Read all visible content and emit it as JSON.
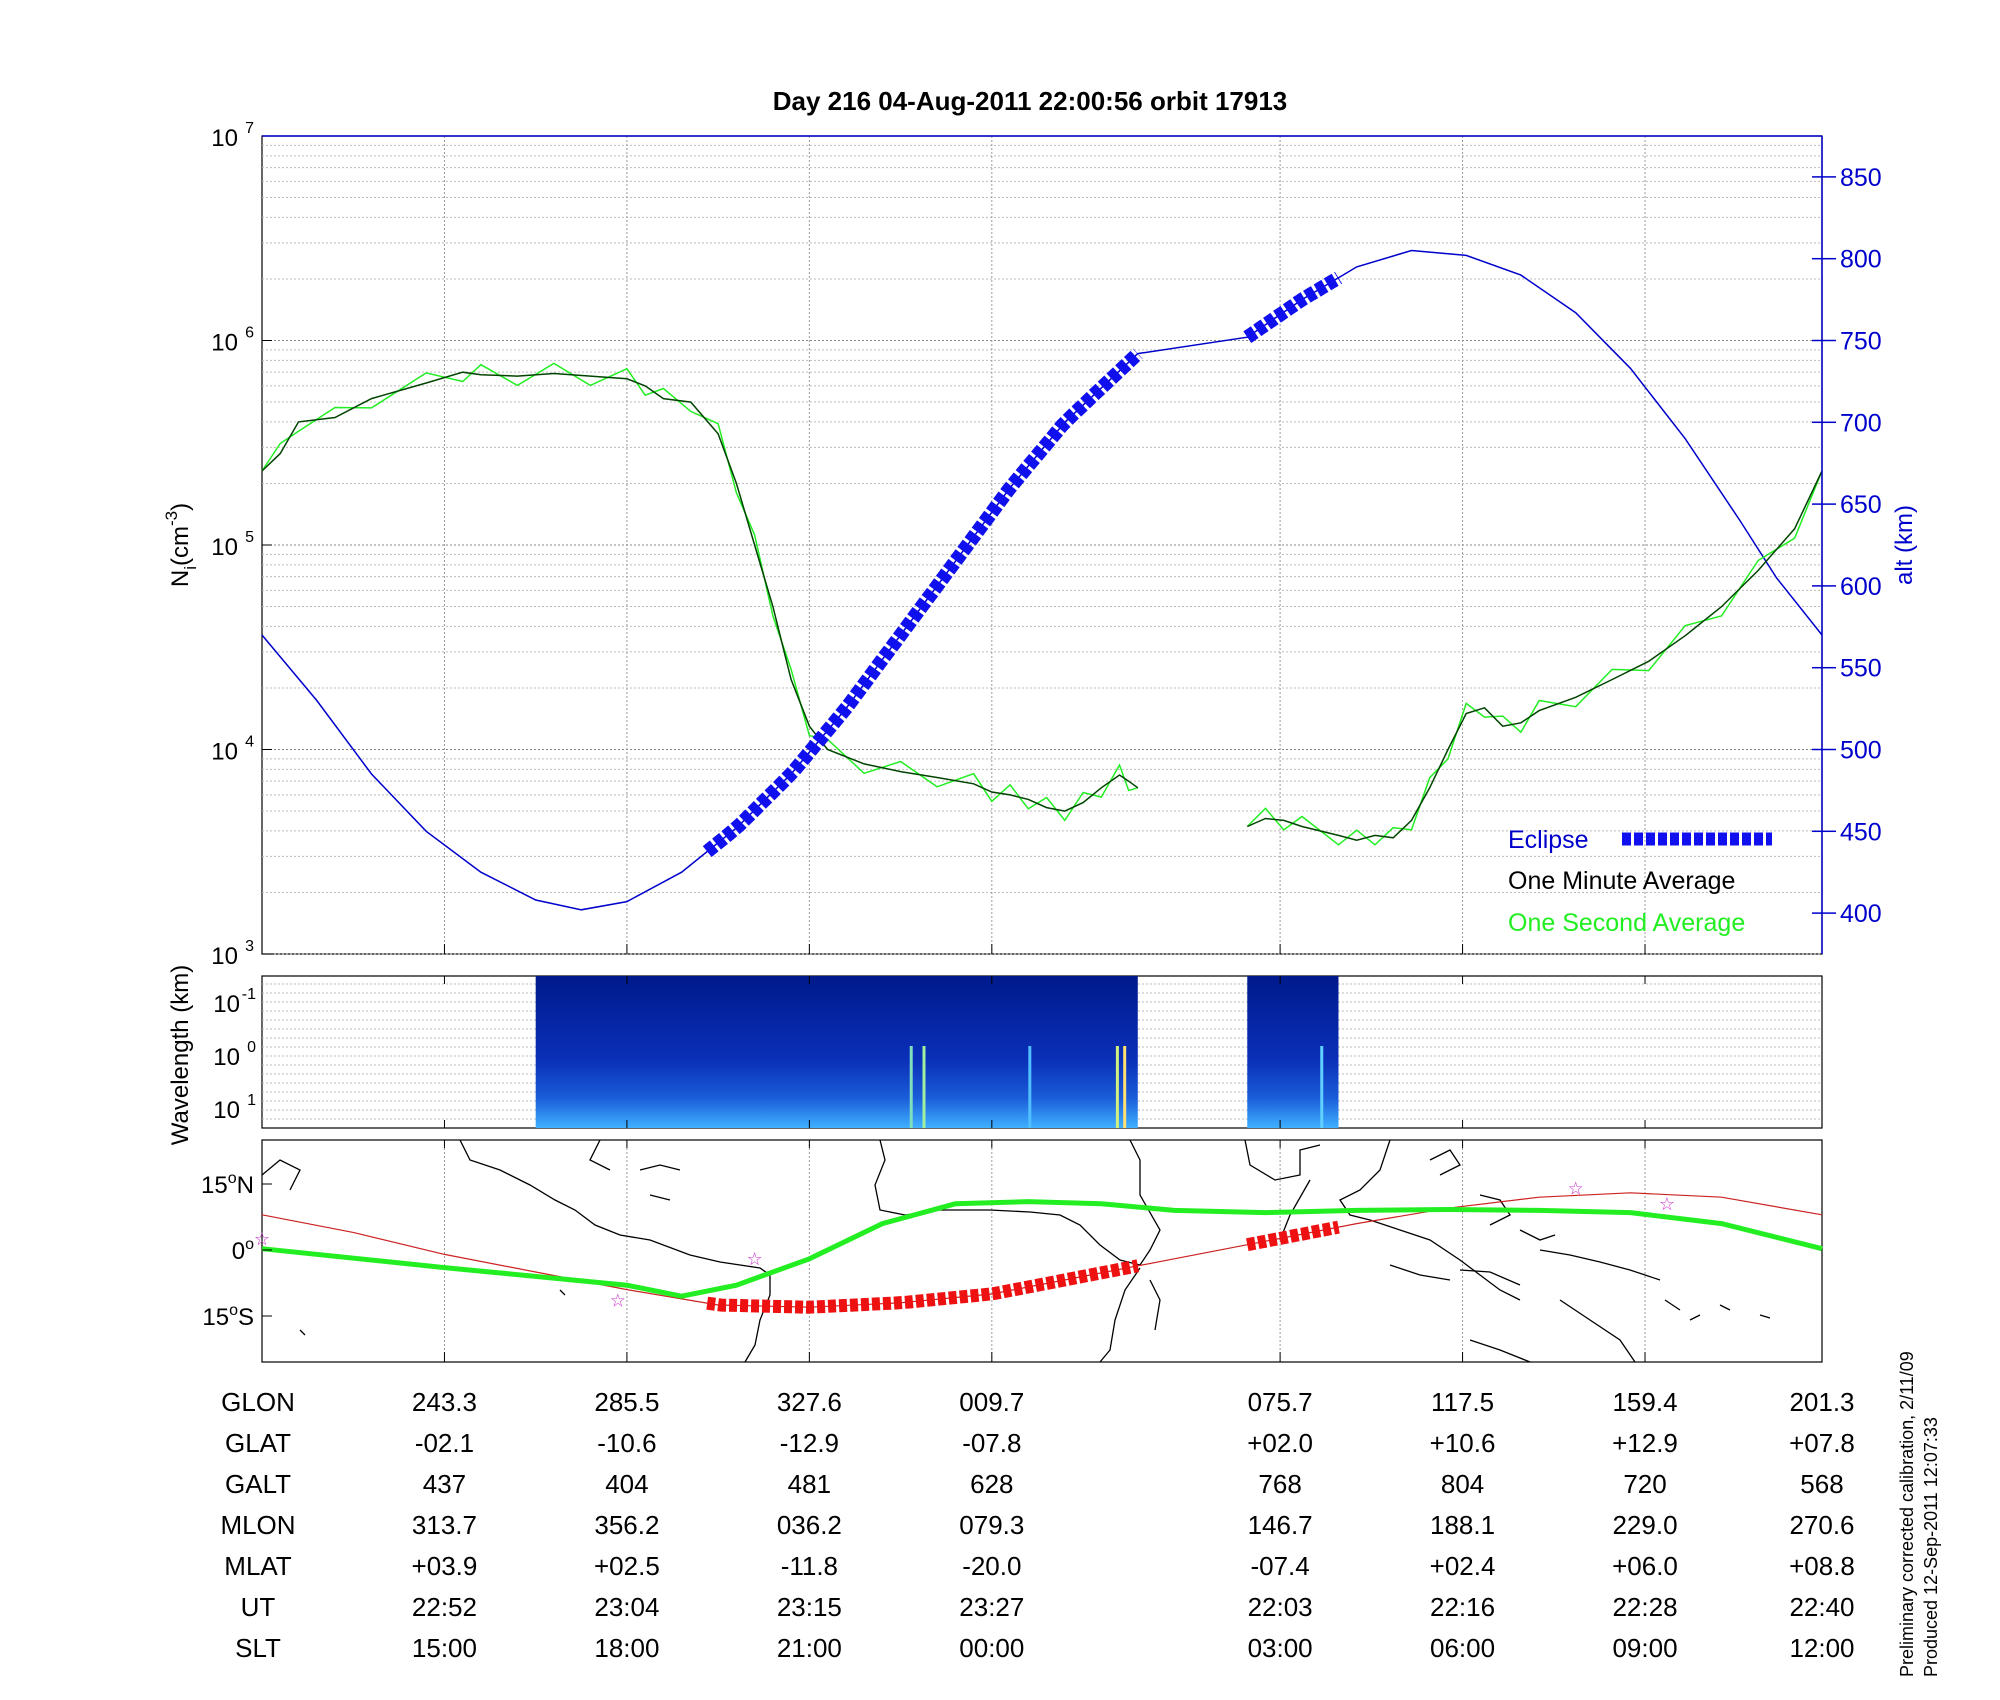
{
  "title": "Day 216  04-Aug-2011 22:00:56   orbit 17913",
  "colors": {
    "altitude": "#0000cc",
    "eclipse": "#1010ee",
    "one_minute": "#004400",
    "one_second": "#22ee22",
    "map_track": "#22ee22",
    "map_eclipse": "#ee1111",
    "map_orbit": "#cc2222",
    "stars": "#cc33cc"
  },
  "chart_data": [
    {
      "type": "line",
      "panel": "density",
      "title": "",
      "ylabel": "N_i (cm^-3)",
      "ylabel_base": "N",
      "ylabel_sub": "i",
      "ylabel_unit": "(cm",
      "ylabel_exp": "-3",
      "ylabel_close": ")",
      "y_log": true,
      "ylim": [
        1000,
        10000000
      ],
      "y_ticks": [
        {
          "base": "10",
          "exp": "3",
          "value": 1000
        },
        {
          "base": "10",
          "exp": "4",
          "value": 10000
        },
        {
          "base": "10",
          "exp": "5",
          "value": 100000
        },
        {
          "base": "10",
          "exp": "6",
          "value": 1000000
        },
        {
          "base": "10",
          "exp": "7",
          "value": 10000000
        }
      ],
      "y2label": "alt (km)",
      "y2lim": [
        375,
        875
      ],
      "y2_ticks": [
        "400",
        "450",
        "500",
        "550",
        "600",
        "650",
        "700",
        "750",
        "800",
        "850"
      ],
      "x_index_range": [
        0,
        8.55
      ],
      "legend_position": "bottom-right",
      "legend": {
        "eclipse": "Eclipse",
        "one_minute": "One Minute Average",
        "one_second": "One Second Average"
      },
      "series": [
        {
          "name": "One Minute Average",
          "points": [
            [
              0,
              230000
            ],
            [
              0.1,
              280000
            ],
            [
              0.2,
              400000
            ],
            [
              0.4,
              420000
            ],
            [
              0.6,
              520000
            ],
            [
              0.9,
              620000
            ],
            [
              1.1,
              700000
            ],
            [
              1.2,
              680000
            ],
            [
              1.4,
              670000
            ],
            [
              1.6,
              690000
            ],
            [
              1.8,
              670000
            ],
            [
              2.0,
              650000
            ],
            [
              2.1,
              600000
            ],
            [
              2.2,
              520000
            ],
            [
              2.35,
              500000
            ],
            [
              2.5,
              350000
            ],
            [
              2.6,
              200000
            ],
            [
              2.7,
              100000
            ],
            [
              2.8,
              50000
            ],
            [
              2.9,
              22000
            ],
            [
              3.0,
              13000
            ],
            [
              3.1,
              10000
            ],
            [
              3.3,
              8500
            ],
            [
              3.5,
              7800
            ],
            [
              3.7,
              7300
            ],
            [
              3.9,
              6800
            ],
            [
              4.0,
              6200
            ],
            [
              4.1,
              6000
            ],
            [
              4.2,
              5700
            ],
            [
              4.3,
              5200
            ],
            [
              4.4,
              5000
            ],
            [
              4.5,
              5500
            ],
            [
              4.6,
              6500
            ],
            [
              4.7,
              7500
            ],
            [
              4.75,
              7000
            ],
            [
              4.8,
              6500
            ]
          ],
          "points2": [
            [
              5.4,
              4200
            ],
            [
              5.5,
              4600
            ],
            [
              5.6,
              4500
            ],
            [
              5.7,
              4200
            ],
            [
              5.9,
              3800
            ],
            [
              6.0,
              3600
            ],
            [
              6.1,
              3800
            ],
            [
              6.2,
              3700
            ],
            [
              6.3,
              4500
            ],
            [
              6.4,
              6500
            ],
            [
              6.5,
              10000
            ],
            [
              6.6,
              15000
            ],
            [
              6.7,
              16000
            ],
            [
              6.8,
              13000
            ],
            [
              6.9,
              13500
            ],
            [
              7.0,
              15500
            ],
            [
              7.2,
              18000
            ],
            [
              7.4,
              22000
            ],
            [
              7.6,
              27000
            ],
            [
              7.8,
              36000
            ],
            [
              8.0,
              50000
            ],
            [
              8.2,
              75000
            ],
            [
              8.4,
              120000
            ],
            [
              8.55,
              230000
            ]
          ]
        },
        {
          "name": "alt (km)",
          "points": [
            [
              0,
              570
            ],
            [
              0.3,
              530
            ],
            [
              0.6,
              485
            ],
            [
              0.9,
              450
            ],
            [
              1.2,
              425
            ],
            [
              1.5,
              408
            ],
            [
              1.75,
              402
            ],
            [
              2.0,
              407
            ],
            [
              2.3,
              425
            ],
            [
              2.6,
              452
            ],
            [
              2.9,
              485
            ],
            [
              3.2,
              525
            ],
            [
              3.5,
              570
            ],
            [
              3.8,
              615
            ],
            [
              4.1,
              660
            ],
            [
              4.4,
              700
            ],
            [
              4.8,
              742
            ],
            [
              5.4,
              752
            ],
            [
              5.7,
              775
            ],
            [
              6.0,
              795
            ],
            [
              6.3,
              805
            ],
            [
              6.6,
              802
            ],
            [
              6.9,
              790
            ],
            [
              7.2,
              767
            ],
            [
              7.5,
              733
            ],
            [
              7.8,
              690
            ],
            [
              8.1,
              640
            ],
            [
              8.3,
              605
            ],
            [
              8.55,
              570
            ]
          ]
        },
        {
          "name": "Eclipse",
          "segments": [
            [
              2.44,
              4.8
            ],
            [
              5.4,
              5.9
            ]
          ]
        }
      ]
    },
    {
      "type": "heatmap",
      "panel": "spectrogram",
      "ylabel": "Wavelength (km)",
      "y_ticks": [
        {
          "base": "10",
          "exp": "-1"
        },
        {
          "base": "10",
          "exp": "0"
        },
        {
          "base": "10",
          "exp": "1"
        }
      ],
      "data_intervals": [
        [
          1.5,
          4.8
        ],
        [
          5.4,
          5.9
        ]
      ]
    },
    {
      "type": "line",
      "panel": "map",
      "y_ticks": [
        {
          "value": "15",
          "deg": "o",
          "hemi": "N"
        },
        {
          "value": "0",
          "deg": "o",
          "hemi": ""
        },
        {
          "value": "15",
          "deg": "o",
          "hemi": "S"
        }
      ],
      "series": [
        {
          "name": "ground track",
          "lat": [
            [
              0,
              0.3
            ],
            [
              1,
              -4
            ],
            [
              2,
              -8
            ],
            [
              2.3,
              -10.5
            ],
            [
              2.6,
              -8
            ],
            [
              3.0,
              -2
            ],
            [
              3.4,
              6
            ],
            [
              3.8,
              10.5
            ],
            [
              4.2,
              11
            ],
            [
              4.6,
              10.5
            ],
            [
              5.0,
              9
            ],
            [
              5.5,
              8.5
            ],
            [
              6.0,
              9
            ],
            [
              6.5,
              9.2
            ],
            [
              7.0,
              9
            ],
            [
              7.5,
              8.5
            ],
            [
              8.0,
              6
            ],
            [
              8.55,
              0.3
            ]
          ]
        },
        {
          "name": "orbit",
          "lat": [
            [
              0,
              8
            ],
            [
              0.5,
              4
            ],
            [
              1,
              -1
            ],
            [
              1.5,
              -5
            ],
            [
              2.0,
              -9
            ],
            [
              2.5,
              -12.5
            ],
            [
              3.0,
              -13
            ],
            [
              3.5,
              -12
            ],
            [
              4.0,
              -10
            ],
            [
              4.5,
              -6
            ],
            [
              5.0,
              -2
            ],
            [
              5.5,
              2
            ],
            [
              6.0,
              6
            ],
            [
              6.5,
              9.5
            ],
            [
              7.0,
              12
            ],
            [
              7.5,
              13
            ],
            [
              8.0,
              12
            ],
            [
              8.55,
              8
            ]
          ]
        },
        {
          "name": "eclipse-track",
          "segments": [
            [
              2.44,
              4.8
            ],
            [
              5.4,
              5.9
            ]
          ]
        }
      ],
      "stars": [
        [
          0,
          2.5
        ],
        [
          1.95,
          -11.5
        ],
        [
          2.7,
          -2
        ],
        [
          7.2,
          14
        ],
        [
          7.7,
          10.5
        ]
      ]
    }
  ],
  "table": {
    "row_labels": [
      "GLON",
      "GLAT",
      "GALT",
      "MLON",
      "MLAT",
      "UT",
      "SLT"
    ],
    "columns": [
      [
        "243.3",
        "-02.1",
        "437",
        "313.7",
        "+03.9",
        "22:52",
        "15:00"
      ],
      [
        "285.5",
        "-10.6",
        "404",
        "356.2",
        "+02.5",
        "23:04",
        "18:00"
      ],
      [
        "327.6",
        "-12.9",
        "481",
        "036.2",
        "-11.8",
        "23:15",
        "21:00"
      ],
      [
        "009.7",
        "-07.8",
        "628",
        "079.3",
        "-20.0",
        "23:27",
        "00:00"
      ],
      [
        "075.7",
        "+02.0",
        "768",
        "146.7",
        "-07.4",
        "22:03",
        "03:00"
      ],
      [
        "117.5",
        "+10.6",
        "804",
        "188.1",
        "+02.4",
        "22:16",
        "06:00"
      ],
      [
        "159.4",
        "+12.9",
        "720",
        "229.0",
        "+06.0",
        "22:28",
        "09:00"
      ],
      [
        "201.3",
        "+07.8",
        "568",
        "270.6",
        "+08.8",
        "22:40",
        "12:00"
      ]
    ],
    "column_index": [
      1,
      2,
      3,
      4,
      5.58,
      6.58,
      7.58,
      8.58
    ]
  },
  "footer": {
    "line1": "Preliminary corrected calibration, 2/11/09",
    "line2": "Produced 12-Sep-2011 12:07:33"
  }
}
